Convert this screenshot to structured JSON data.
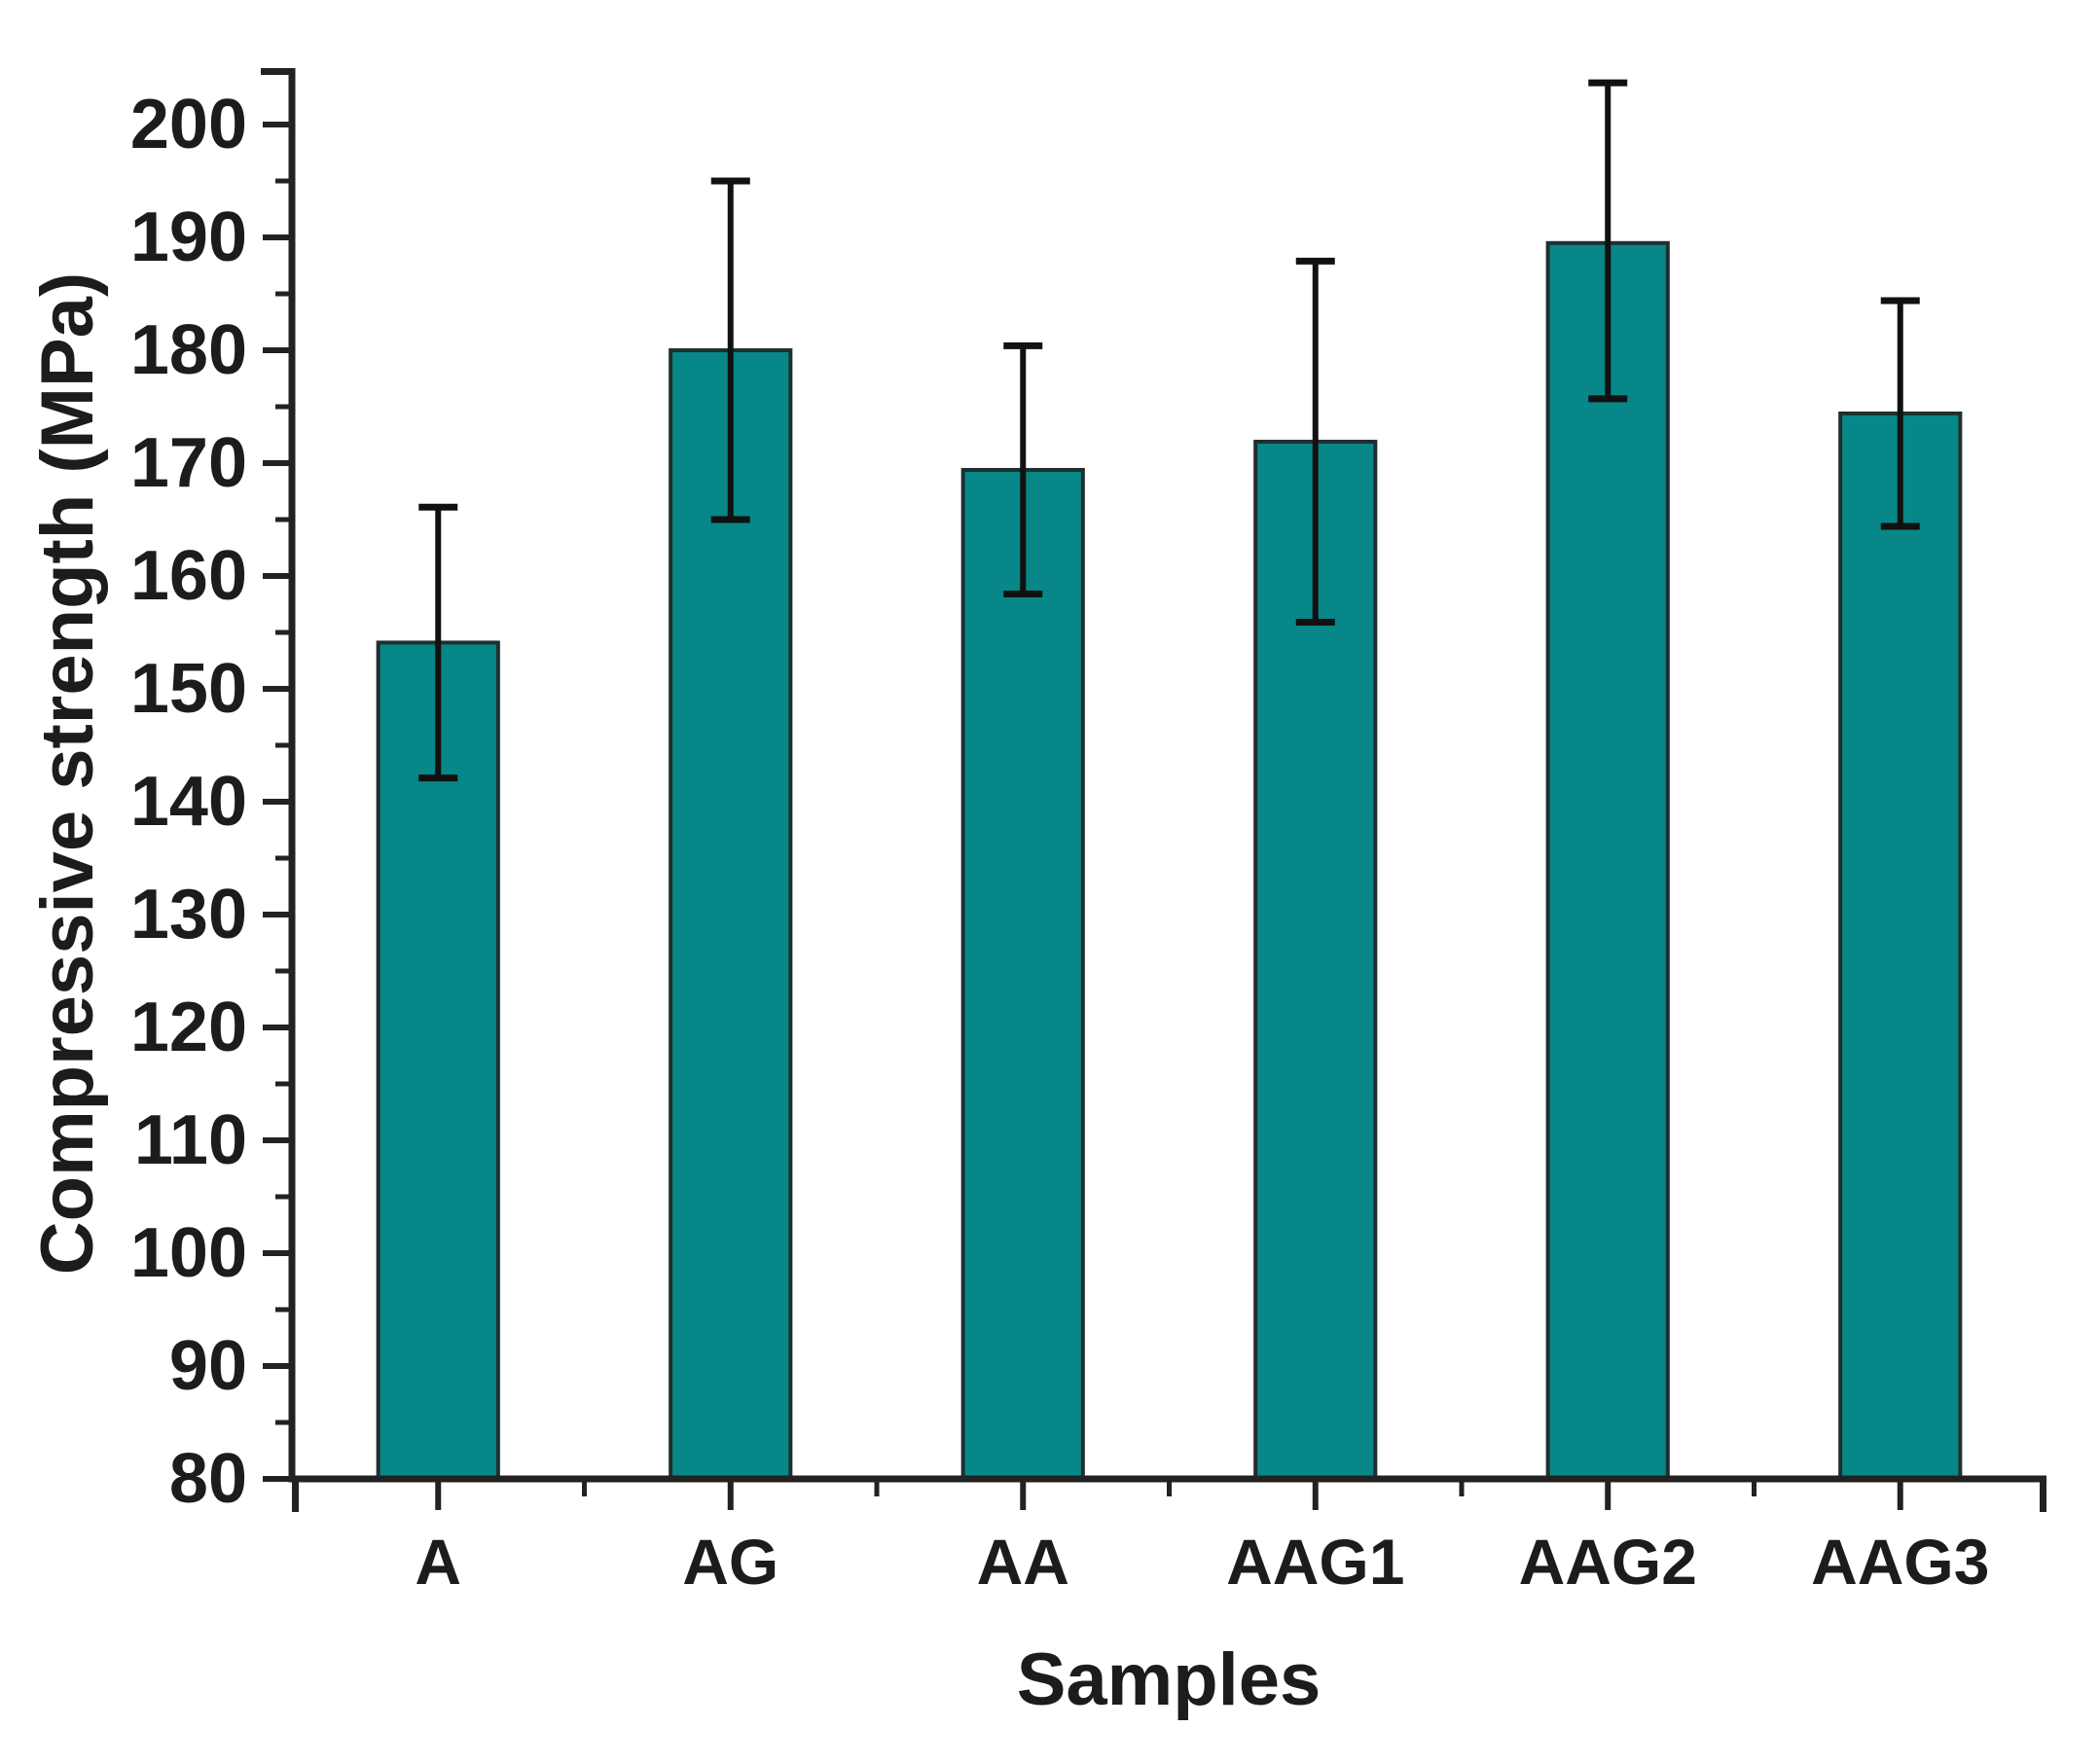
{
  "chart_data": {
    "type": "bar",
    "title": "",
    "xlabel": "Samples",
    "ylabel": "Compressive strength (MPa)",
    "categories": [
      "A",
      "AG",
      "AA",
      "AAG1",
      "AAG2",
      "AAG3"
    ],
    "series": [
      {
        "name": "Compressive strength",
        "values": [
          154.1,
          180.0,
          169.4,
          171.9,
          189.5,
          174.4
        ],
        "error_plus": [
          12.0,
          15.0,
          11.0,
          16.0,
          14.2,
          10.0
        ],
        "error_minus": [
          12.0,
          15.0,
          11.0,
          16.0,
          13.8,
          10.0
        ]
      }
    ],
    "ylim": [
      80,
      205
    ],
    "yticks": [
      80,
      90,
      100,
      110,
      120,
      130,
      140,
      150,
      160,
      170,
      180,
      190,
      200
    ],
    "ytick_minor_step": 5,
    "grid": "off",
    "legend": "none",
    "colors": {
      "bar_fill": "#078787",
      "bar_edge": "#1f2f2f",
      "error_bar": "#111111",
      "axis": "#222222",
      "text": "#1c1c1c"
    }
  }
}
